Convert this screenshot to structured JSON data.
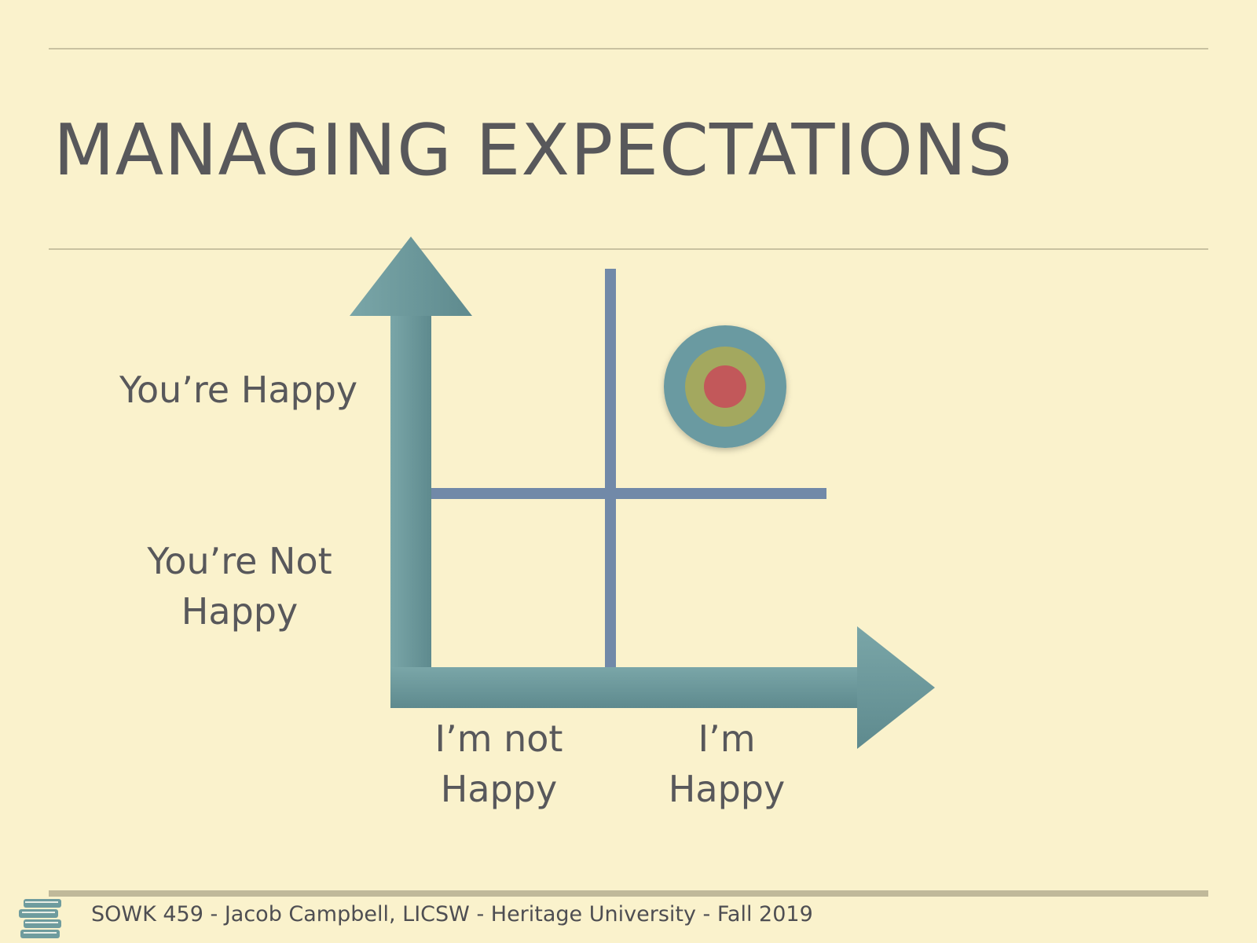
{
  "slide": {
    "title": "MANAGING EXPECTATIONS",
    "footer": "SOWK 459 - Jacob Campbell, LICSW - Heritage University - Fall 2019"
  },
  "diagram": {
    "y_axis_labels": {
      "high": "You’re Happy",
      "low_line1": "You’re Not",
      "low_line2": "Happy"
    },
    "x_axis_labels": {
      "low_line1": "I’m not",
      "low_line2": "Happy",
      "high_line1": "I’m",
      "high_line2": "Happy"
    },
    "target_quadrant": "I’m Happy / You’re Happy",
    "colors": {
      "background": "#faf2cc",
      "axis_arrow": "#6f9c9e",
      "grid_lines": "#7189a8",
      "target_outer": "#6a9aa1",
      "target_middle": "#a3a85f",
      "target_center": "#c2585a"
    }
  },
  "icons": {
    "footer_icon": "books-icon"
  }
}
